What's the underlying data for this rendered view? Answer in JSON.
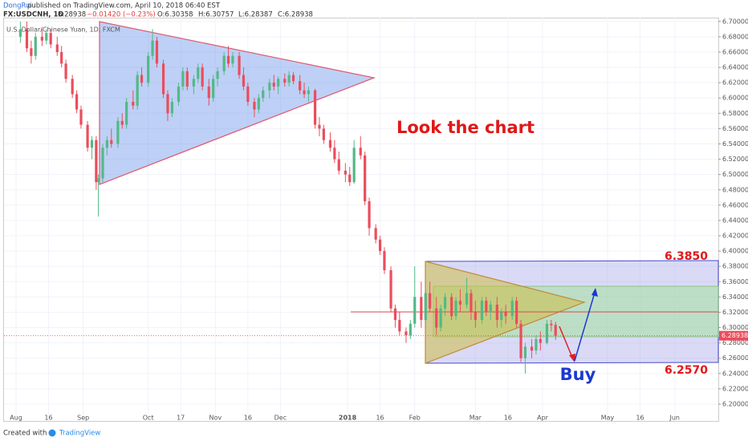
{
  "header": {
    "author": "DongRui",
    "published": "published on TradingView.com, April 10, 2018 06:40 EST",
    "symbol": "FX:USDCNH, 1D",
    "price": "6.28938",
    "change": "−0.01420 (−0.23%)",
    "open": "O:6.30358",
    "high": "H:6.30757",
    "low": "L:6.28387",
    "close": "C:6.28938"
  },
  "footer": {
    "created": "Created with",
    "brand": "TradingView"
  },
  "chart_data": {
    "type": "candlestick",
    "legend": "U.S. Dollar/Chinese Yuan, 1D, FXCM",
    "up_color": "#53b987",
    "down_color": "#eb4d5c",
    "grid": true,
    "xlim": [
      -5.55,
      324.1
    ],
    "ylim": [
      6.178,
      6.705
    ],
    "xticks": [
      {
        "value": 0,
        "label": "Aug"
      },
      {
        "value": 15,
        "label": "16"
      },
      {
        "value": 31,
        "label": "Sep"
      },
      {
        "value": 61,
        "label": "Oct"
      },
      {
        "value": 76,
        "label": "17"
      },
      {
        "value": 92,
        "label": "Nov"
      },
      {
        "value": 107,
        "label": "16"
      },
      {
        "value": 122,
        "label": "Dec"
      },
      {
        "value": 153,
        "label": "2018"
      },
      {
        "value": 168,
        "label": "16"
      },
      {
        "value": 184,
        "label": "Feb"
      },
      {
        "value": 212,
        "label": "Mar"
      },
      {
        "value": 227,
        "label": "16"
      },
      {
        "value": 243,
        "label": "Apr"
      },
      {
        "value": 273,
        "label": "May"
      },
      {
        "value": 288,
        "label": "16"
      },
      {
        "value": 304,
        "label": "Jun"
      }
    ],
    "yticks": [
      {
        "value": 6.7,
        "label": "6.70000"
      },
      {
        "value": 6.68,
        "label": "6.68000"
      },
      {
        "value": 6.66,
        "label": "6.66000"
      },
      {
        "value": 6.64,
        "label": "6.64000"
      },
      {
        "value": 6.62,
        "label": "6.62000"
      },
      {
        "value": 6.6,
        "label": "6.60000"
      },
      {
        "value": 6.58,
        "label": "6.58000"
      },
      {
        "value": 6.56,
        "label": "6.56000"
      },
      {
        "value": 6.54,
        "label": "6.54000"
      },
      {
        "value": 6.52,
        "label": "6.52000"
      },
      {
        "value": 6.5,
        "label": "6.50000"
      },
      {
        "value": 6.48,
        "label": "6.48000"
      },
      {
        "value": 6.46,
        "label": "6.46000"
      },
      {
        "value": 6.44,
        "label": "6.44000"
      },
      {
        "value": 6.42,
        "label": "6.42000"
      },
      {
        "value": 6.4,
        "label": "6.40000"
      },
      {
        "value": 6.38,
        "label": "6.38000"
      },
      {
        "value": 6.36,
        "label": "6.36000"
      },
      {
        "value": 6.34,
        "label": "6.34000"
      },
      {
        "value": 6.32,
        "label": "6.32000"
      },
      {
        "value": 6.3,
        "label": "6.30000"
      },
      {
        "value": 6.28,
        "label": "6.28000"
      },
      {
        "value": 6.26,
        "label": "6.26000"
      },
      {
        "value": 6.24,
        "label": "6.24000"
      },
      {
        "value": 6.22,
        "label": "6.22000"
      },
      {
        "value": 6.2,
        "label": "6.20000"
      }
    ],
    "last_price": {
      "value": 6.28938,
      "label": "6.28938"
    },
    "annotations": {
      "look": "Look the chart",
      "upper": "6.3850",
      "lower": "6.2570",
      "buy": "Buy"
    },
    "candles": [
      [
        2,
        6.68,
        6.7,
        6.672,
        6.69
      ],
      [
        5,
        6.69,
        6.7,
        6.66,
        6.665
      ],
      [
        7,
        6.665,
        6.675,
        6.645,
        6.655
      ],
      [
        9,
        6.655,
        6.685,
        6.65,
        6.68
      ],
      [
        12,
        6.68,
        6.69,
        6.668,
        6.675
      ],
      [
        14,
        6.675,
        6.69,
        6.67,
        6.685
      ],
      [
        16,
        6.685,
        6.69,
        6.665,
        6.67
      ],
      [
        19,
        6.67,
        6.68,
        6.655,
        6.66
      ],
      [
        21,
        6.66,
        6.668,
        6.64,
        6.645
      ],
      [
        23,
        6.645,
        6.65,
        6.62,
        6.625
      ],
      [
        26,
        6.625,
        6.63,
        6.6,
        6.605
      ],
      [
        28,
        6.605,
        6.61,
        6.58,
        6.585
      ],
      [
        30,
        6.585,
        6.59,
        6.56,
        6.565
      ],
      [
        33,
        6.565,
        6.57,
        6.53,
        6.535
      ],
      [
        35,
        6.535,
        6.55,
        6.52,
        6.545
      ],
      [
        37,
        6.545,
        6.55,
        6.48,
        6.49
      ],
      [
        38,
        6.49,
        6.5,
        6.445,
        6.495
      ],
      [
        40,
        6.495,
        6.54,
        6.49,
        6.535
      ],
      [
        42,
        6.535,
        6.55,
        6.525,
        6.545
      ],
      [
        44,
        6.545,
        6.56,
        6.535,
        6.54
      ],
      [
        47,
        6.54,
        6.575,
        6.535,
        6.57
      ],
      [
        49,
        6.57,
        6.58,
        6.56,
        6.565
      ],
      [
        51,
        6.565,
        6.6,
        6.56,
        6.595
      ],
      [
        54,
        6.595,
        6.61,
        6.585,
        6.59
      ],
      [
        56,
        6.59,
        6.635,
        6.585,
        6.63
      ],
      [
        58,
        6.63,
        6.64,
        6.615,
        6.62
      ],
      [
        61,
        6.62,
        6.66,
        6.615,
        6.655
      ],
      [
        63,
        6.655,
        6.69,
        6.65,
        6.675
      ],
      [
        65,
        6.675,
        6.68,
        6.64,
        6.645
      ],
      [
        68,
        6.645,
        6.65,
        6.6,
        6.605
      ],
      [
        70,
        6.605,
        6.61,
        6.57,
        6.58
      ],
      [
        72,
        6.58,
        6.6,
        6.575,
        6.595
      ],
      [
        75,
        6.595,
        6.62,
        6.59,
        6.615
      ],
      [
        77,
        6.615,
        6.64,
        6.61,
        6.635
      ],
      [
        79,
        6.635,
        6.64,
        6.61,
        6.615
      ],
      [
        82,
        6.615,
        6.63,
        6.605,
        6.625
      ],
      [
        84,
        6.625,
        6.645,
        6.62,
        6.64
      ],
      [
        86,
        6.64,
        6.645,
        6.61,
        6.615
      ],
      [
        89,
        6.615,
        6.625,
        6.59,
        6.6
      ],
      [
        91,
        6.6,
        6.63,
        6.595,
        6.625
      ],
      [
        93,
        6.625,
        6.64,
        6.615,
        6.635
      ],
      [
        96,
        6.635,
        6.66,
        6.63,
        6.655
      ],
      [
        98,
        6.655,
        6.668,
        6.64,
        6.645
      ],
      [
        100,
        6.645,
        6.66,
        6.64,
        6.655
      ],
      [
        103,
        6.655,
        6.66,
        6.625,
        6.63
      ],
      [
        105,
        6.63,
        6.64,
        6.61,
        6.615
      ],
      [
        107,
        6.615,
        6.62,
        6.59,
        6.595
      ],
      [
        110,
        6.595,
        6.6,
        6.575,
        6.585
      ],
      [
        112,
        6.585,
        6.605,
        6.58,
        6.6
      ],
      [
        114,
        6.6,
        6.615,
        6.595,
        6.61
      ],
      [
        117,
        6.61,
        6.625,
        6.6,
        6.62
      ],
      [
        119,
        6.62,
        6.63,
        6.61,
        6.615
      ],
      [
        121,
        6.615,
        6.628,
        6.605,
        6.625
      ],
      [
        124,
        6.625,
        6.632,
        6.615,
        6.62
      ],
      [
        126,
        6.62,
        6.635,
        6.615,
        6.63
      ],
      [
        128,
        6.63,
        6.634,
        6.618,
        6.622
      ],
      [
        131,
        6.622,
        6.63,
        6.605,
        6.61
      ],
      [
        133,
        6.61,
        6.62,
        6.6,
        6.605
      ],
      [
        135,
        6.605,
        6.615,
        6.595,
        6.61
      ],
      [
        138,
        6.61,
        6.612,
        6.56,
        6.565
      ],
      [
        140,
        6.565,
        6.575,
        6.55,
        6.56
      ],
      [
        142,
        6.56,
        6.565,
        6.54,
        6.545
      ],
      [
        145,
        6.545,
        6.555,
        6.53,
        6.535
      ],
      [
        147,
        6.535,
        6.545,
        6.515,
        6.52
      ],
      [
        149,
        6.52,
        6.53,
        6.5,
        6.505
      ],
      [
        152,
        6.505,
        6.515,
        6.49,
        6.5
      ],
      [
        154,
        6.5,
        6.51,
        6.485,
        6.49
      ],
      [
        156,
        6.49,
        6.545,
        6.488,
        6.535
      ],
      [
        159,
        6.535,
        6.55,
        6.52,
        6.525
      ],
      [
        161,
        6.525,
        6.53,
        6.46,
        6.465
      ],
      [
        163,
        6.465,
        6.47,
        6.42,
        6.43
      ],
      [
        166,
        6.43,
        6.435,
        6.41,
        6.415
      ],
      [
        168,
        6.415,
        6.42,
        6.395,
        6.4
      ],
      [
        170,
        6.4,
        6.405,
        6.37,
        6.375
      ],
      [
        173,
        6.375,
        6.38,
        6.32,
        6.325
      ],
      [
        175,
        6.325,
        6.33,
        6.3,
        6.31
      ],
      [
        177,
        6.31,
        6.32,
        6.29,
        6.295
      ],
      [
        180,
        6.295,
        6.3,
        6.28,
        6.29
      ],
      [
        182,
        6.29,
        6.31,
        6.285,
        6.305
      ],
      [
        184,
        6.305,
        6.38,
        6.3,
        6.34
      ],
      [
        187,
        6.34,
        6.36,
        6.3,
        6.31
      ],
      [
        189,
        6.31,
        6.35,
        6.305,
        6.345
      ],
      [
        191,
        6.345,
        6.36,
        6.32,
        6.325
      ],
      [
        194,
        6.325,
        6.34,
        6.29,
        6.3
      ],
      [
        196,
        6.3,
        6.33,
        6.295,
        6.325
      ],
      [
        198,
        6.325,
        6.345,
        6.315,
        6.34
      ],
      [
        201,
        6.34,
        6.345,
        6.31,
        6.315
      ],
      [
        203,
        6.315,
        6.34,
        6.31,
        6.335
      ],
      [
        205,
        6.335,
        6.35,
        6.32,
        6.33
      ],
      [
        208,
        6.33,
        6.365,
        6.325,
        6.345
      ],
      [
        210,
        6.345,
        6.35,
        6.31,
        6.32
      ],
      [
        212,
        6.32,
        6.335,
        6.3,
        6.31
      ],
      [
        215,
        6.31,
        6.34,
        6.305,
        6.335
      ],
      [
        217,
        6.335,
        6.34,
        6.315,
        6.32
      ],
      [
        219,
        6.32,
        6.335,
        6.31,
        6.33
      ],
      [
        222,
        6.33,
        6.34,
        6.3,
        6.31
      ],
      [
        224,
        6.31,
        6.325,
        6.3,
        6.32
      ],
      [
        226,
        6.32,
        6.33,
        6.305,
        6.315
      ],
      [
        229,
        6.315,
        6.34,
        6.31,
        6.335
      ],
      [
        231,
        6.335,
        6.34,
        6.3,
        6.305
      ],
      [
        233,
        6.305,
        6.31,
        6.255,
        6.26
      ],
      [
        235,
        6.26,
        6.28,
        6.24,
        6.275
      ],
      [
        238,
        6.275,
        6.285,
        6.26,
        6.27
      ],
      [
        240,
        6.27,
        6.29,
        6.265,
        6.285
      ],
      [
        242,
        6.285,
        6.295,
        6.27,
        6.28
      ],
      [
        245,
        6.28,
        6.31,
        6.278,
        6.305
      ],
      [
        247,
        6.305,
        6.31,
        6.295,
        6.303
      ],
      [
        249,
        6.30358,
        6.30757,
        6.28387,
        6.28938
      ]
    ]
  }
}
